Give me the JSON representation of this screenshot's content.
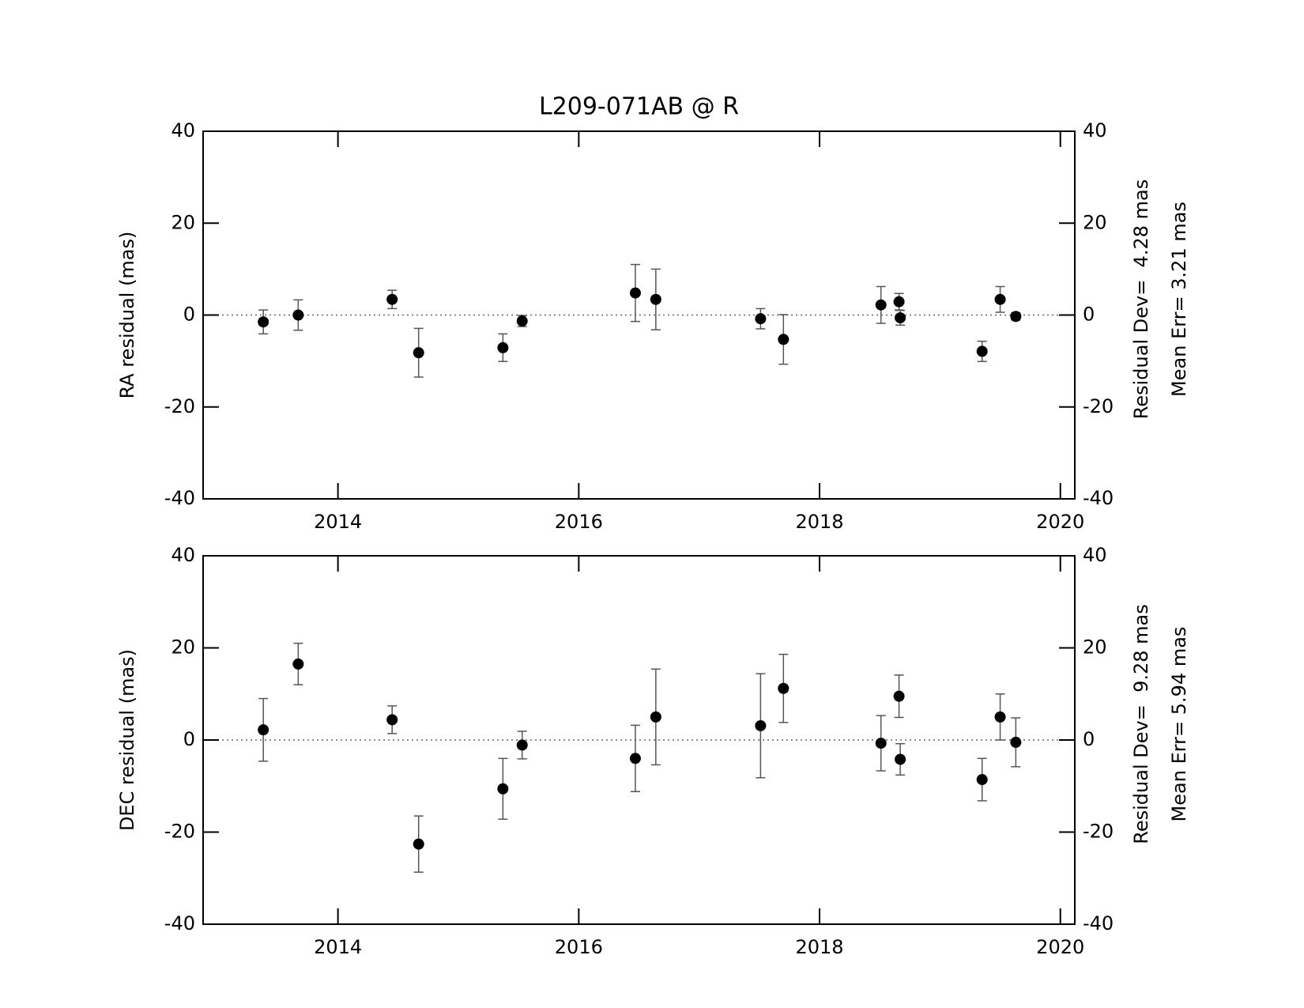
{
  "chart_data": [
    {
      "type": "scatter",
      "title": "L209-071AB @ R",
      "y_label": "RA residual (mas)",
      "annotations": [
        "Residual Dev=  4.28 mas",
        "Mean Err= 3.21 mas"
      ],
      "x": [
        2013.38,
        2013.67,
        2014.45,
        2014.67,
        2015.37,
        2015.53,
        2016.47,
        2016.64,
        2017.51,
        2017.7,
        2018.51,
        2018.66,
        2018.67,
        2019.35,
        2019.5,
        2019.63
      ],
      "values": [
        -1.5,
        0,
        3.4,
        -8.2,
        -7.1,
        -1.3,
        4.8,
        3.4,
        -0.8,
        -5.3,
        2.2,
        2.9,
        -0.6,
        -7.9,
        3.4,
        -0.3
      ],
      "errors": [
        2.6,
        3.3,
        2,
        5.3,
        3,
        1.2,
        6.2,
        6.6,
        2.2,
        5.4,
        4,
        1.8,
        1.6,
        2.2,
        2.8,
        0.8
      ],
      "color": "#000000",
      "error_color": "#555555",
      "zero_line": true,
      "xlim": [
        2012.88,
        2020.12
      ],
      "xticks": [
        2014,
        2016,
        2018,
        2020
      ],
      "ylim": [
        -40,
        40
      ],
      "yticks": [
        -40,
        -20,
        0,
        20,
        40
      ],
      "y2lim": [
        -40,
        40
      ],
      "y2ticks": [
        -40,
        -20,
        0,
        20,
        40
      ]
    },
    {
      "type": "scatter",
      "y_label": "DEC residual (mas)",
      "annotations": [
        "Residual Dev=  9.28 mas",
        "Mean Err= 5.94 mas"
      ],
      "x": [
        2013.38,
        2013.67,
        2014.45,
        2014.67,
        2015.37,
        2015.53,
        2016.47,
        2016.64,
        2017.51,
        2017.7,
        2018.51,
        2018.66,
        2018.67,
        2019.35,
        2019.5,
        2019.63
      ],
      "values": [
        2.2,
        16.5,
        4.4,
        -22.6,
        -10.6,
        -1.1,
        -4,
        5,
        3.1,
        11.2,
        -0.7,
        9.5,
        -4.2,
        -8.6,
        5,
        -0.5
      ],
      "errors": [
        6.8,
        4.5,
        3,
        6.1,
        6.6,
        3,
        7.2,
        10.4,
        11.3,
        7.4,
        6,
        4.6,
        3.4,
        4.6,
        5,
        5.3
      ],
      "color": "#000000",
      "error_color": "#555555",
      "zero_line": true,
      "xlim": [
        2012.88,
        2020.12
      ],
      "xticks": [
        2014,
        2016,
        2018,
        2020
      ],
      "ylim": [
        -40,
        40
      ],
      "yticks": [
        -40,
        -20,
        0,
        20,
        40
      ],
      "y2lim": [
        -40,
        40
      ],
      "y2ticks": [
        -40,
        -20,
        0,
        20,
        40
      ]
    }
  ]
}
